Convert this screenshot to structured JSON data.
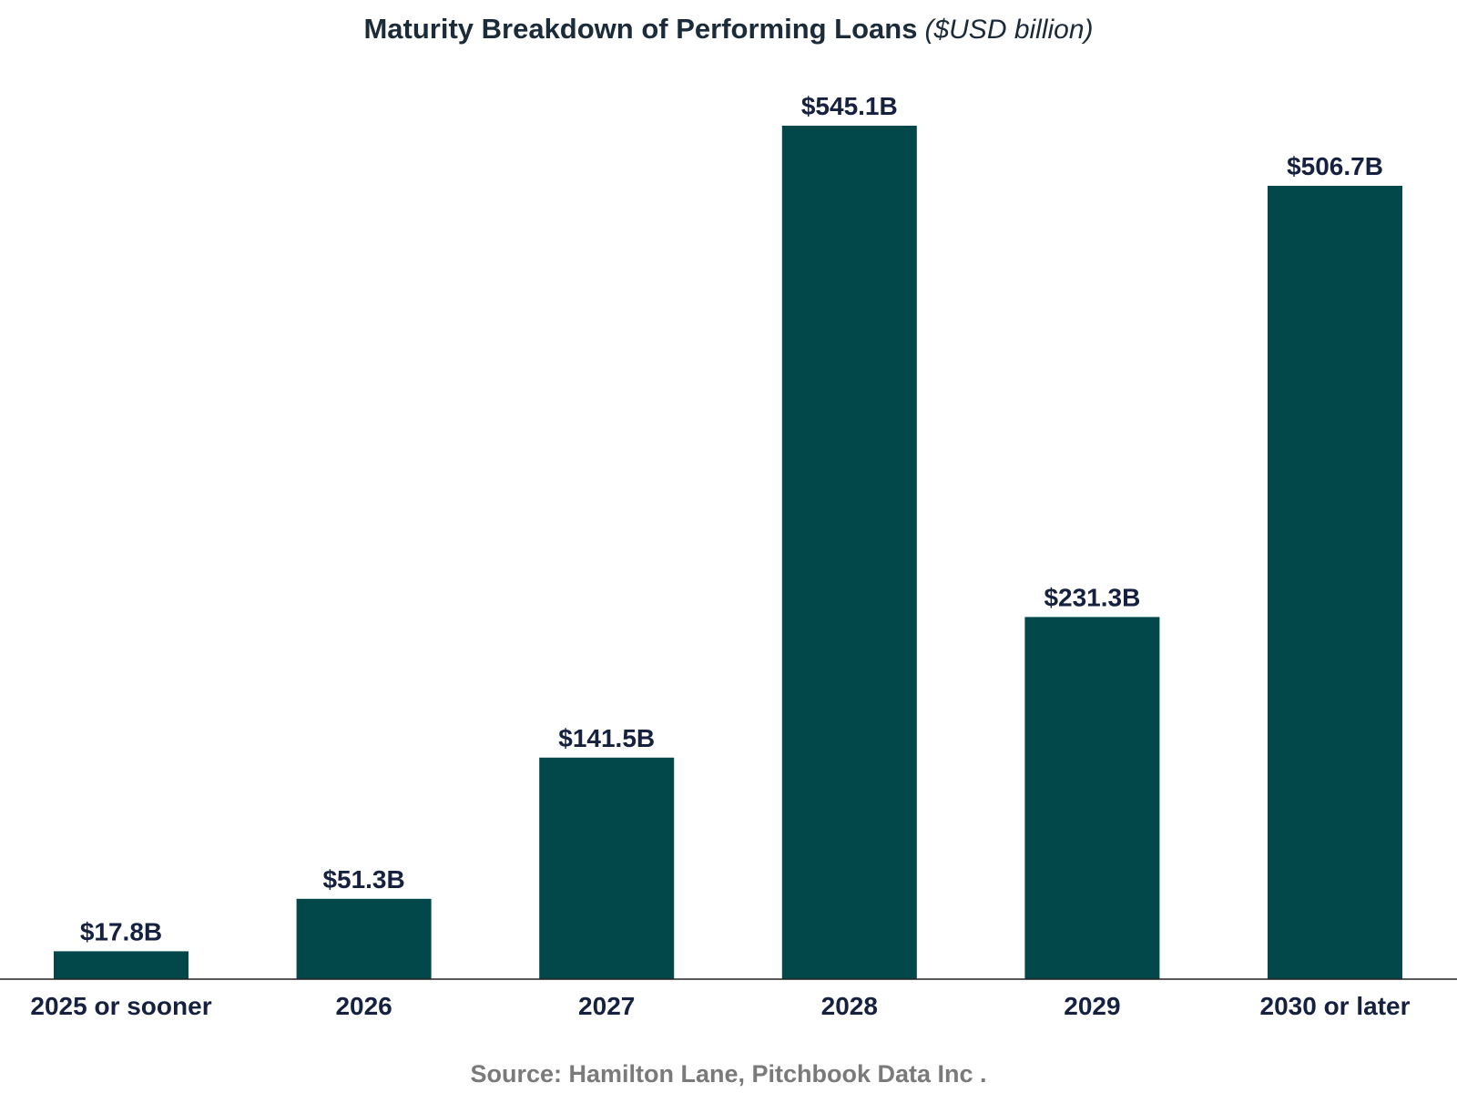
{
  "chart_data": {
    "type": "bar",
    "title": "Maturity Breakdown of Performing Loans",
    "subtitle": "($USD billion)",
    "categories": [
      "2025 or sooner",
      "2026",
      "2027",
      "2028",
      "2029",
      "2030 or later"
    ],
    "values": [
      17.8,
      51.3,
      141.5,
      545.1,
      231.3,
      506.7
    ],
    "data_labels": [
      "$17.8B",
      "$51.3B",
      "$141.5B",
      "$545.1B",
      "$231.3B",
      "$506.7B"
    ],
    "xlabel": "",
    "ylabel": "",
    "ylim": [
      0,
      545.1
    ],
    "grid": false,
    "legend": "none",
    "colors": {
      "bar": "#02474a",
      "labels": "#16213f",
      "source": "#7a7a7a"
    }
  },
  "source": "Source: Hamilton Lane, Pitchbook Data Inc ."
}
